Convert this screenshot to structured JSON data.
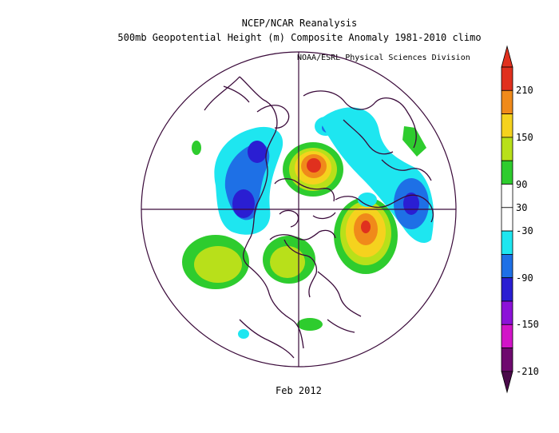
{
  "titles": {
    "line1": "NCEP/NCAR Reanalysis",
    "line2": "500mb Geopotential Height (m) Composite Anomaly 1981-2010 climo",
    "credit": "NOAA/ESRL Physical Sciences Division"
  },
  "footer": {
    "period": "Feb 2012"
  },
  "colorbar": {
    "labels": [
      "210",
      "150",
      "90",
      "30",
      "-30",
      "-90",
      "-150",
      "-210"
    ],
    "bins": [
      {
        "color": "#e0301e"
      },
      {
        "color": "#f08a1a"
      },
      {
        "color": "#f5d21e"
      },
      {
        "color": "#b8e01a"
      },
      {
        "color": "#2ecc2e"
      },
      {
        "color": "#ffffff"
      },
      {
        "color": "#ffffff"
      },
      {
        "color": "#1ee6f0"
      },
      {
        "color": "#1e70e6"
      },
      {
        "color": "#2a1ed2"
      },
      {
        "color": "#8c12d8"
      },
      {
        "color": "#d214c8"
      },
      {
        "color": "#6e0a6e"
      }
    ],
    "top_arrow_color": "#e0301e",
    "bottom_arrow_color": "#4a0a4a"
  },
  "anomalies": [
    {
      "name": "negative-center-north-canada",
      "sign": "negative"
    },
    {
      "name": "negative-center-north-pacific",
      "sign": "negative"
    },
    {
      "name": "positive-center-arctic",
      "sign": "positive"
    },
    {
      "name": "positive-center-eastern-siberia",
      "sign": "positive"
    },
    {
      "name": "negative-center-europe",
      "sign": "negative"
    },
    {
      "name": "positive-center-east-pacific",
      "sign": "positive"
    },
    {
      "name": "positive-center-north-america",
      "sign": "positive"
    }
  ]
}
